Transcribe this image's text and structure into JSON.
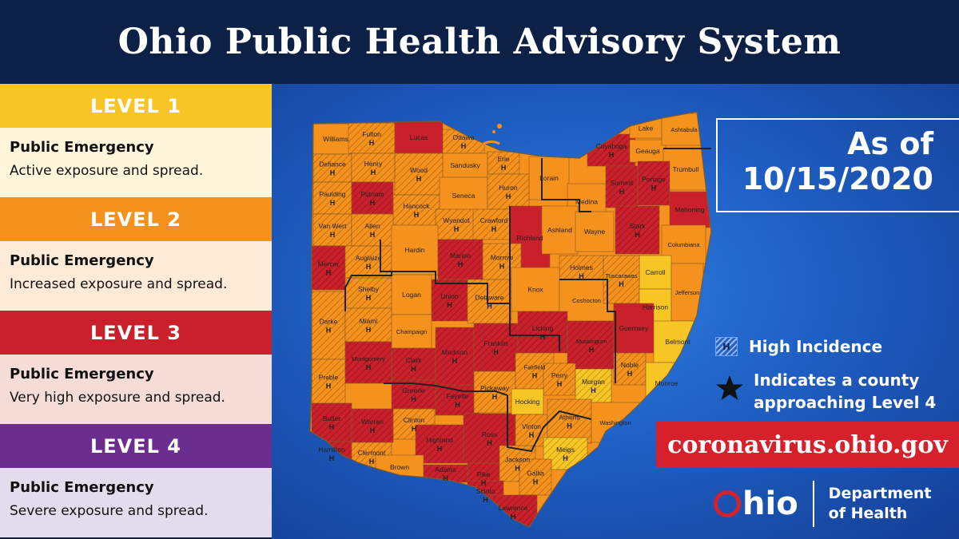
{
  "title": "Ohio Public Health Advisory System",
  "levels": [
    {
      "name": "LEVEL 1",
      "heading": "Public Emergency",
      "desc": "Active exposure and spread.",
      "color": "#f7c625",
      "bg": "#fff6dc"
    },
    {
      "name": "LEVEL 2",
      "heading": "Public Emergency",
      "desc": "Increased exposure and spread.",
      "color": "#f5921e",
      "bg": "#fdebd8"
    },
    {
      "name": "LEVEL 3",
      "heading": "Public Emergency",
      "desc": "Very high exposure and spread.",
      "color": "#c9202b",
      "bg": "#f5dcd6"
    },
    {
      "name": "LEVEL 4",
      "heading": "Public Emergency",
      "desc": "Severe exposure and spread.",
      "color": "#6b2d8e",
      "bg": "#e3dcec"
    }
  ],
  "as_of": {
    "label": "As of",
    "date": "10/15/2020"
  },
  "key": {
    "high_incidence": "High Incidence",
    "hatch_mark": "H",
    "star_line1": "Indicates a county",
    "star_line2": "approaching Level 4"
  },
  "url": "coronavirus.ohio.gov",
  "logo": {
    "ohio": "hio",
    "dept_line1": "Department",
    "dept_line2": "of Health"
  },
  "colors": {
    "level1": "#f7c625",
    "level2": "#f5921e",
    "level3": "#c9202b",
    "level4": "#6b2d8e"
  },
  "counties": [
    {
      "name": "Williams",
      "level": 2,
      "h": false
    },
    {
      "name": "Fulton",
      "level": 2,
      "h": true
    },
    {
      "name": "Lucas",
      "level": 3,
      "h": false
    },
    {
      "name": "Ottawa",
      "level": 2,
      "h": true
    },
    {
      "name": "Erie",
      "level": 2,
      "h": true
    },
    {
      "name": "Sandusky",
      "level": 2,
      "h": false
    },
    {
      "name": "Defiance",
      "level": 2,
      "h": true
    },
    {
      "name": "Henry",
      "level": 2,
      "h": true
    },
    {
      "name": "Wood",
      "level": 2,
      "h": true
    },
    {
      "name": "Paulding",
      "level": 2,
      "h": true
    },
    {
      "name": "Putnam",
      "level": 3,
      "h": true
    },
    {
      "name": "Hancock",
      "level": 2,
      "h": true
    },
    {
      "name": "Seneca",
      "level": 2,
      "h": false
    },
    {
      "name": "Huron",
      "level": 2,
      "h": true
    },
    {
      "name": "Lorain",
      "level": 2,
      "h": false
    },
    {
      "name": "Cuyahoga",
      "level": 3,
      "h": true
    },
    {
      "name": "Lake",
      "level": 2,
      "h": false
    },
    {
      "name": "Geauga",
      "level": 2,
      "h": false
    },
    {
      "name": "Ashtabula",
      "level": 2,
      "h": false
    },
    {
      "name": "Trumbull",
      "level": 2,
      "h": false
    },
    {
      "name": "Medina",
      "level": 2,
      "h": false
    },
    {
      "name": "Summit",
      "level": 3,
      "h": true
    },
    {
      "name": "Portage",
      "level": 3,
      "h": true
    },
    {
      "name": "Mahoning",
      "level": 3,
      "h": false
    },
    {
      "name": "Van Wert",
      "level": 2,
      "h": true
    },
    {
      "name": "Allen",
      "level": 2,
      "h": true
    },
    {
      "name": "Wyandot",
      "level": 2,
      "h": true
    },
    {
      "name": "Crawford",
      "level": 2,
      "h": true
    },
    {
      "name": "Richland",
      "level": 3,
      "h": false
    },
    {
      "name": "Ashland",
      "level": 2,
      "h": false
    },
    {
      "name": "Wayne",
      "level": 2,
      "h": false
    },
    {
      "name": "Stark",
      "level": 3,
      "h": true
    },
    {
      "name": "Columbiana",
      "level": 2,
      "h": false
    },
    {
      "name": "Mercer",
      "level": 3,
      "h": true
    },
    {
      "name": "Auglaize",
      "level": 2,
      "h": true
    },
    {
      "name": "Hardin",
      "level": 2,
      "h": false
    },
    {
      "name": "Marion",
      "level": 3,
      "h": true
    },
    {
      "name": "Morrow",
      "level": 2,
      "h": true
    },
    {
      "name": "Holmes",
      "level": 2,
      "h": true
    },
    {
      "name": "Carroll",
      "level": 1,
      "h": false
    },
    {
      "name": "Shelby",
      "level": 2,
      "h": true
    },
    {
      "name": "Logan",
      "level": 2,
      "h": false
    },
    {
      "name": "Union",
      "level": 3,
      "h": true
    },
    {
      "name": "Delaware",
      "level": 2,
      "h": true
    },
    {
      "name": "Knox",
      "level": 2,
      "h": false
    },
    {
      "name": "Coshocton",
      "level": 2,
      "h": false
    },
    {
      "name": "Tuscarawas",
      "level": 2,
      "h": true
    },
    {
      "name": "Harrison",
      "level": 1,
      "h": false
    },
    {
      "name": "Jefferson",
      "level": 2,
      "h": false
    },
    {
      "name": "Darke",
      "level": 2,
      "h": true
    },
    {
      "name": "Miami",
      "level": 2,
      "h": true
    },
    {
      "name": "Champaign",
      "level": 2,
      "h": false
    },
    {
      "name": "Clark",
      "level": 3,
      "h": true
    },
    {
      "name": "Madison",
      "level": 3,
      "h": true
    },
    {
      "name": "Franklin",
      "level": 3,
      "h": true
    },
    {
      "name": "Licking",
      "level": 3,
      "h": true
    },
    {
      "name": "Muskingum",
      "level": 3,
      "h": true
    },
    {
      "name": "Guernsey",
      "level": 3,
      "h": false
    },
    {
      "name": "Belmont",
      "level": 1,
      "h": false
    },
    {
      "name": "Preble",
      "level": 2,
      "h": true
    },
    {
      "name": "Montgomery",
      "level": 3,
      "h": true
    },
    {
      "name": "Greene",
      "level": 3,
      "h": true
    },
    {
      "name": "Fayette",
      "level": 3,
      "h": true
    },
    {
      "name": "Pickaway",
      "level": 2,
      "h": true
    },
    {
      "name": "Fairfield",
      "level": 2,
      "h": true
    },
    {
      "name": "Perry",
      "level": 2,
      "h": true
    },
    {
      "name": "Morgan",
      "level": 1,
      "h": true
    },
    {
      "name": "Noble",
      "level": 2,
      "h": true
    },
    {
      "name": "Monroe",
      "level": 1,
      "h": false
    },
    {
      "name": "Butler",
      "level": 3,
      "h": true
    },
    {
      "name": "Warren",
      "level": 3,
      "h": true
    },
    {
      "name": "Clinton",
      "level": 2,
      "h": true
    },
    {
      "name": "Ross",
      "level": 3,
      "h": true
    },
    {
      "name": "Hocking",
      "level": 1,
      "h": false
    },
    {
      "name": "Vinton",
      "level": 2,
      "h": true
    },
    {
      "name": "Athens",
      "level": 2,
      "h": true
    },
    {
      "name": "Washington",
      "level": 2,
      "h": false
    },
    {
      "name": "Hamilton",
      "level": 3,
      "h": true
    },
    {
      "name": "Clermont",
      "level": 2,
      "h": true
    },
    {
      "name": "Highland",
      "level": 3,
      "h": true
    },
    {
      "name": "Pike",
      "level": 3,
      "h": true
    },
    {
      "name": "Jackson",
      "level": 2,
      "h": true
    },
    {
      "name": "Meigs",
      "level": 1,
      "h": true
    },
    {
      "name": "Brown",
      "level": 2,
      "h": false
    },
    {
      "name": "Adams",
      "level": 3,
      "h": true
    },
    {
      "name": "Scioto",
      "level": 3,
      "h": true
    },
    {
      "name": "Gallia",
      "level": 2,
      "h": true
    },
    {
      "name": "Lawrence",
      "level": 3,
      "h": true
    }
  ]
}
